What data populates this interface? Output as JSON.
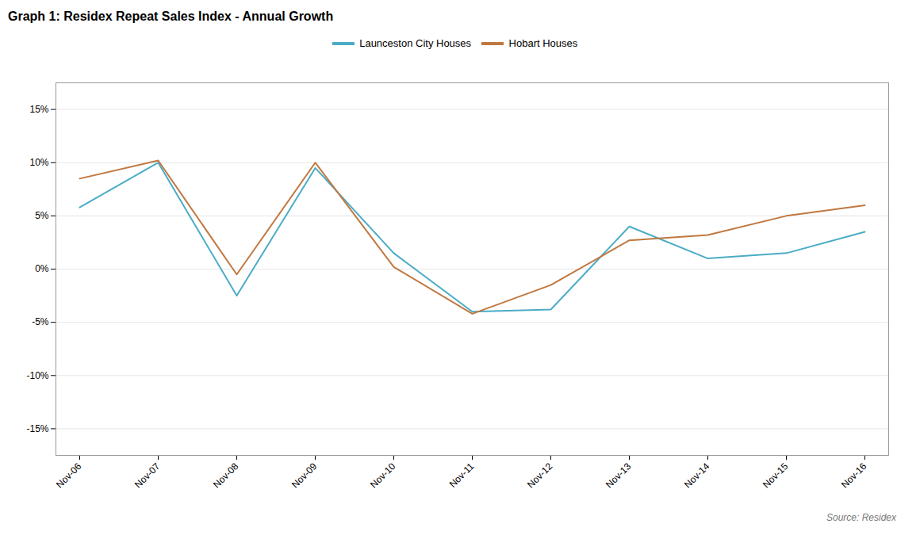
{
  "chart_data": {
    "type": "line",
    "title": "Graph 1: Residex Repeat Sales Index - Annual Growth",
    "source": "Source: Residex",
    "categories": [
      "Nov-06",
      "Nov-07",
      "Nov-08",
      "Nov-09",
      "Nov-10",
      "Nov-11",
      "Nov-12",
      "Nov-13",
      "Nov-14",
      "Nov-15",
      "Nov-16"
    ],
    "series": [
      {
        "name": "Launceston City Houses",
        "color": "#4BACC6",
        "values": [
          5.8,
          10.0,
          -2.5,
          9.5,
          1.5,
          -4.0,
          -3.8,
          4.0,
          1.0,
          1.5,
          3.5
        ]
      },
      {
        "name": "Hobart Houses",
        "color": "#C07840",
        "values": [
          8.5,
          10.2,
          -0.5,
          10.0,
          0.2,
          -4.2,
          -1.5,
          2.7,
          3.2,
          5.0,
          6.0
        ]
      }
    ],
    "ylim": [
      -17.5,
      17.5
    ],
    "yticks": [
      {
        "value": -15,
        "label": "-15%"
      },
      {
        "value": -10,
        "label": "-10%"
      },
      {
        "value": -5,
        "label": "-5%"
      },
      {
        "value": 0,
        "label": "0%"
      },
      {
        "value": 5,
        "label": "5%"
      },
      {
        "value": 10,
        "label": "10%"
      },
      {
        "value": 15,
        "label": "15%"
      }
    ],
    "grid": true,
    "legend": "top"
  }
}
